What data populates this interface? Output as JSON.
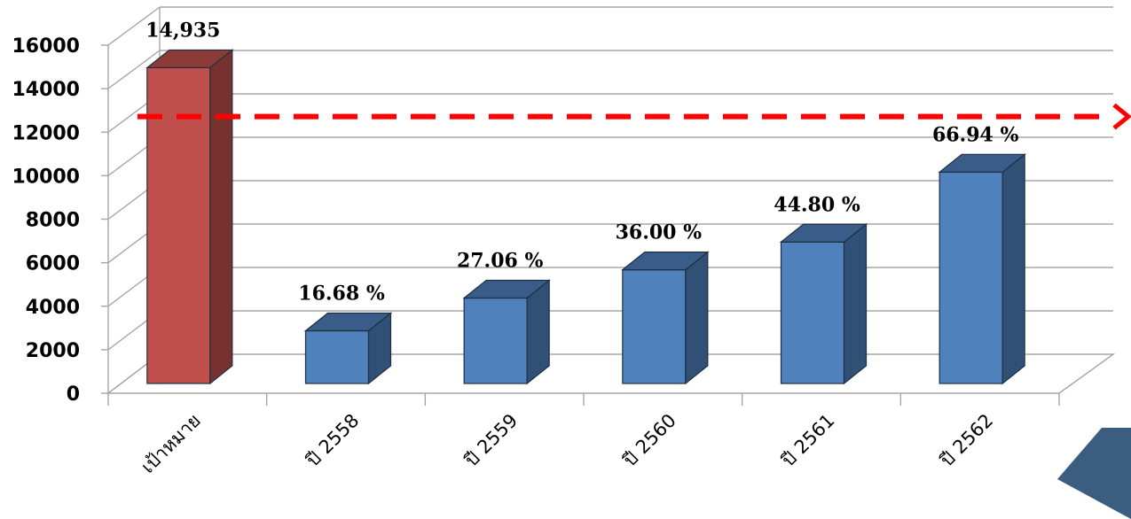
{
  "chart_data": {
    "type": "bar",
    "categories": [
      "เป้าหมาย",
      "ปี 2558",
      "ปี 2559",
      "ปี 2560",
      "ปี 2561",
      "ปี 2562"
    ],
    "values": [
      14935,
      2491,
      4041,
      5377,
      6691,
      9997
    ],
    "data_labels": [
      "14,935",
      "16.68 %",
      "27.06  %",
      "36.00 %",
      "44.80 %",
      "66.94 %"
    ],
    "bar_colors": [
      "#C0504D",
      "#4F81BD",
      "#4F81BD",
      "#4F81BD",
      "#4F81BD",
      "#4F81BD"
    ],
    "ylim": [
      0,
      16000
    ],
    "yticks": [
      "0",
      "2000",
      "4000",
      "6000",
      "8000",
      "10000",
      "12000",
      "14000",
      "16000"
    ],
    "title": "",
    "xlabel": "",
    "ylabel": "",
    "grid": true,
    "three_d": true,
    "target_line": {
      "value": 12750,
      "color": "#FF0000",
      "style": "dashed-arrow"
    }
  },
  "decoration": {
    "corner_color": "#3B5E80"
  }
}
